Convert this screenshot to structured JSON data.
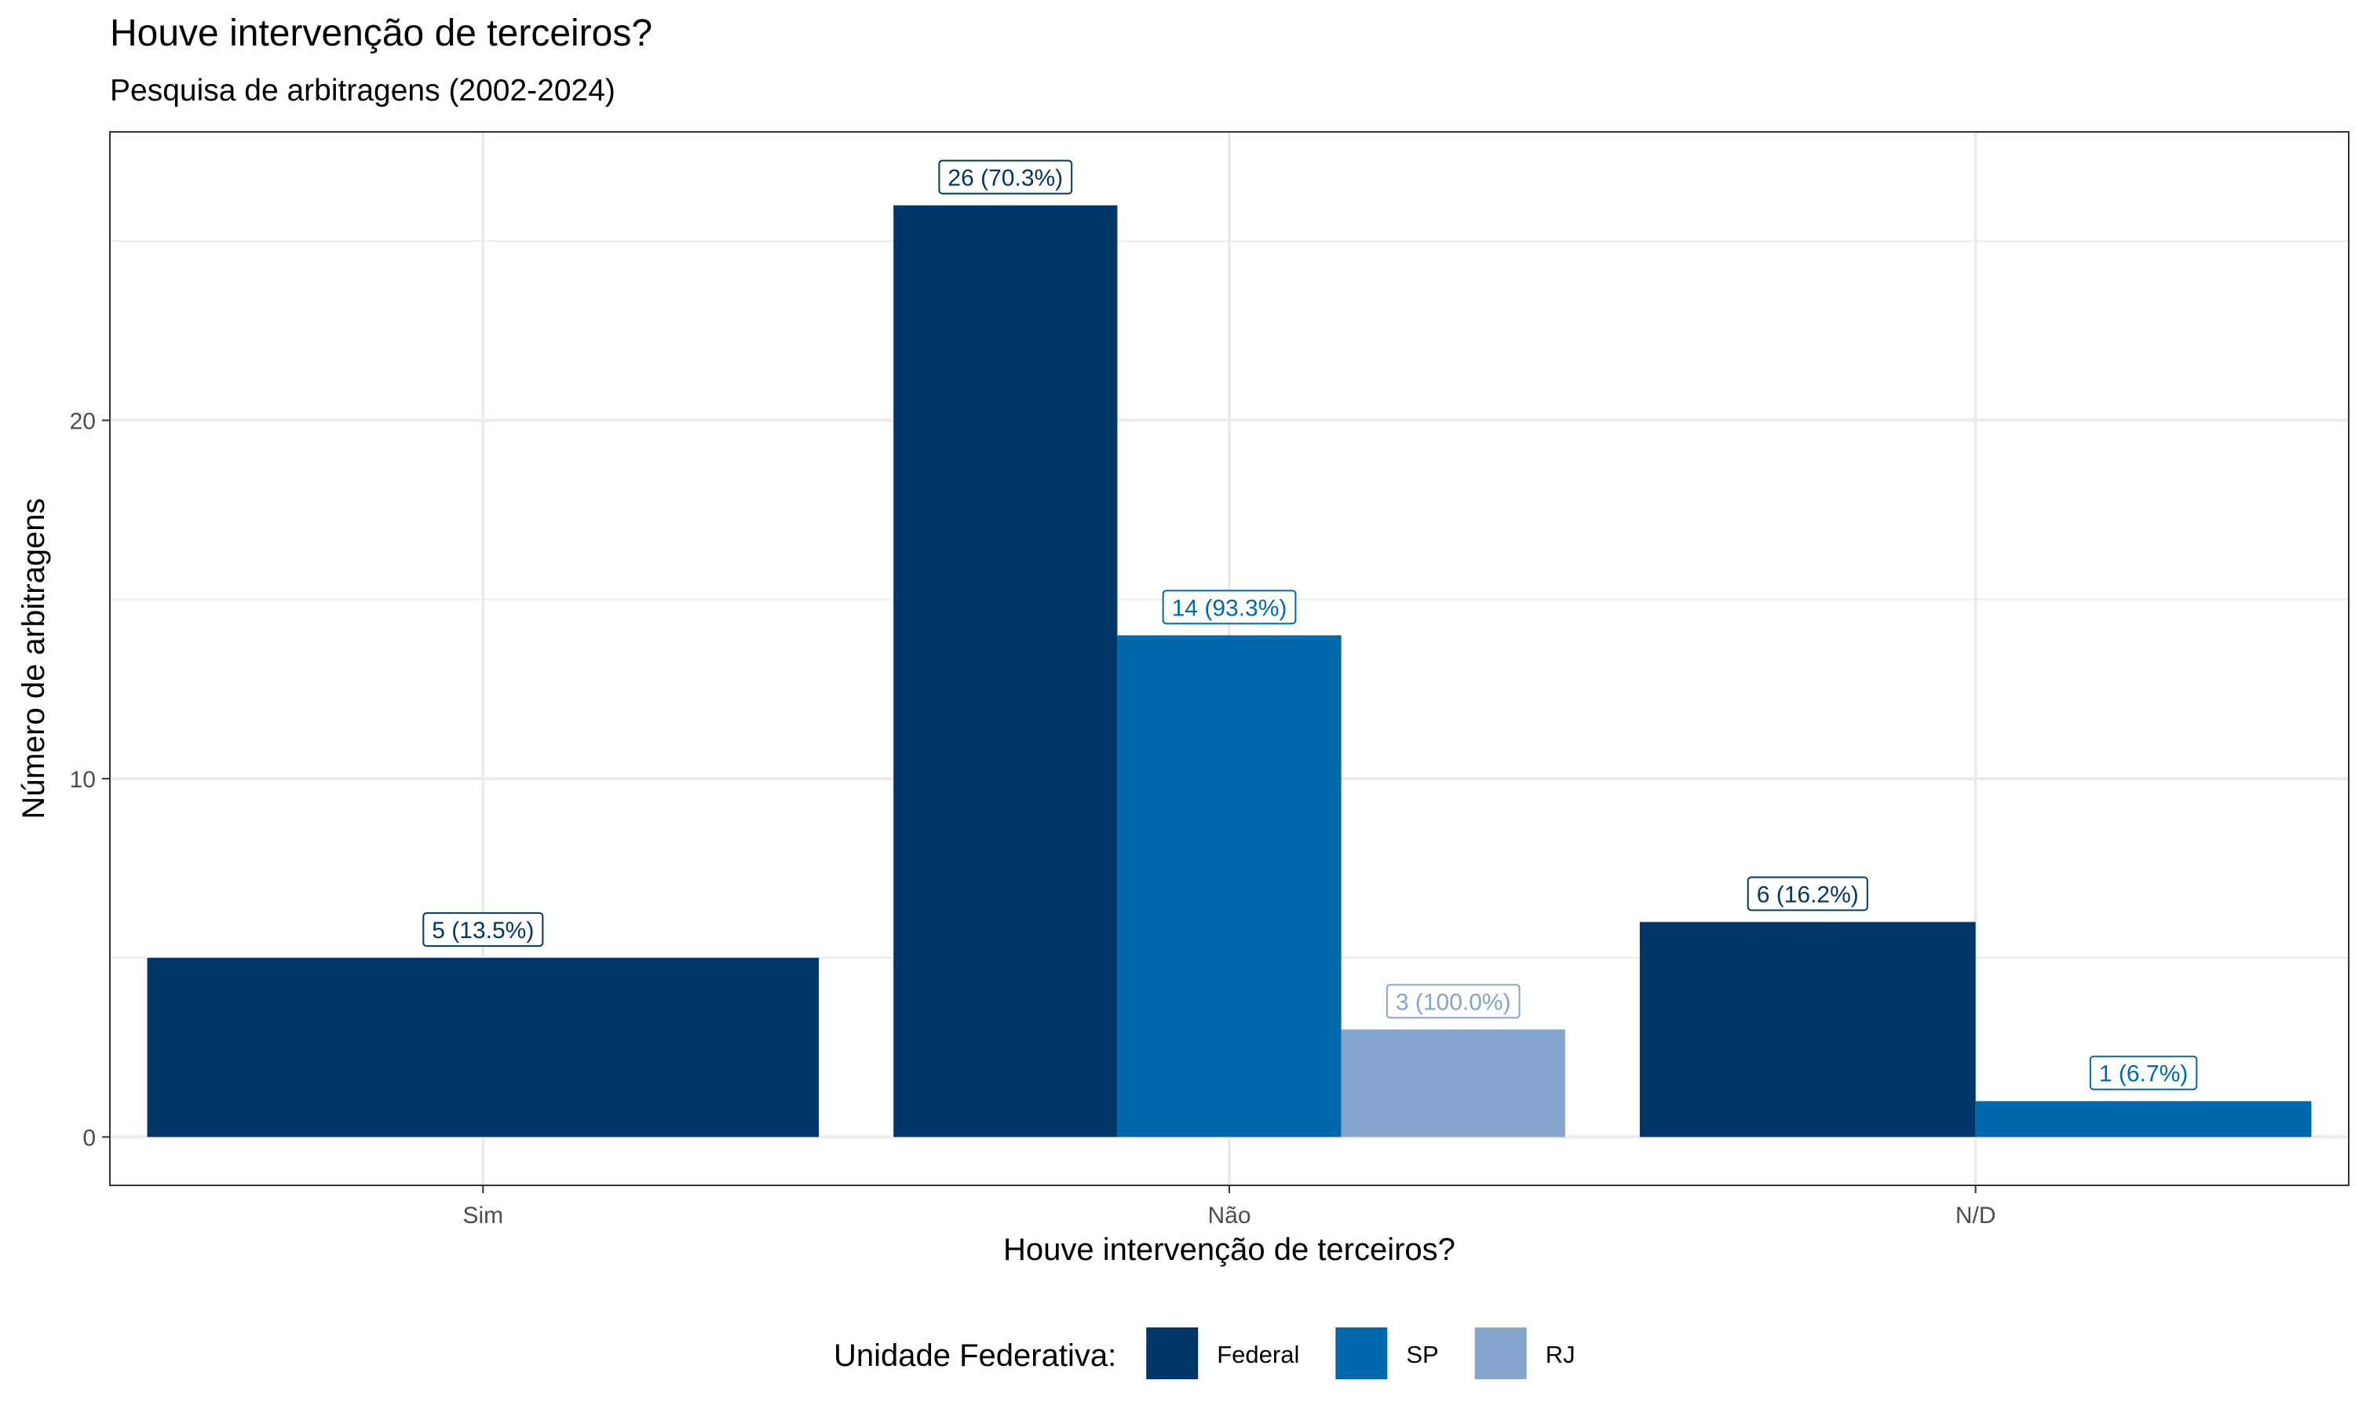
{
  "chart_data": {
    "type": "bar",
    "title": "Houve intervenção de terceiros?",
    "subtitle": "Pesquisa de arbitragens (2002-2024)",
    "xlabel": "Houve intervenção de terceiros?",
    "ylabel": "Número de arbitragens",
    "categories": [
      "Sim",
      "Não",
      "N/D"
    ],
    "ylim": [
      -1.35,
      28.05
    ],
    "yticks": [
      0,
      10,
      20
    ],
    "grid": true,
    "legend": {
      "title": "Unidade Federativa:",
      "placement": "bottom"
    },
    "series": [
      {
        "name": "Federal",
        "color": "#003669",
        "values": [
          5,
          26,
          6
        ],
        "labels": [
          "5 (13.5%)",
          "26 (70.3%)",
          "6 (16.2%)"
        ]
      },
      {
        "name": "SP",
        "color": "#0068AC",
        "values": [
          null,
          14,
          1
        ],
        "labels": [
          "",
          "14 (93.3%)",
          "1 (6.7%)"
        ]
      },
      {
        "name": "RJ",
        "color": "#84A4CB",
        "values": [
          null,
          3,
          null
        ],
        "labels": [
          "",
          "3 (100.0%)",
          ""
        ]
      }
    ]
  }
}
